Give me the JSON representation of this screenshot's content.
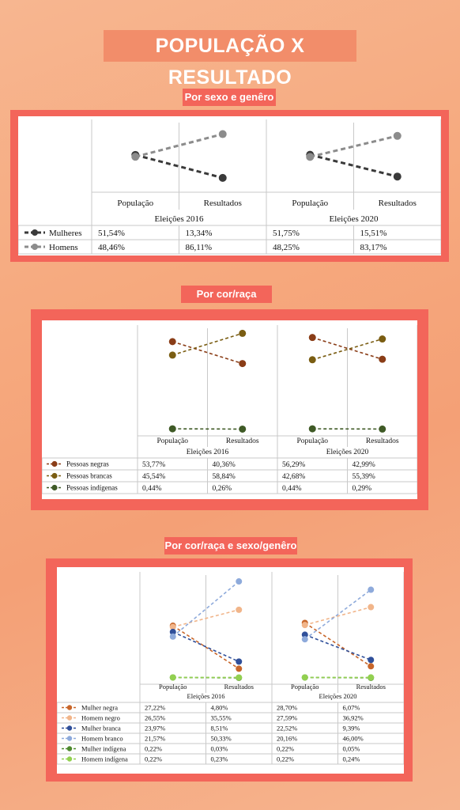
{
  "title": "POPULAÇÃO X RESULTADO",
  "sections": [
    {
      "subtitle": "Por sexo e genêro"
    },
    {
      "subtitle": "Por cor/raça"
    },
    {
      "subtitle": "Por cor/raça e sexo/genêro"
    }
  ],
  "chart_data": [
    {
      "type": "line",
      "title": "",
      "groups": [
        "Eleições 2016",
        "Eleições 2020"
      ],
      "categories": [
        "População",
        "Resultados"
      ],
      "series": [
        {
          "name": "Mulheres",
          "color": "#3a3a3a",
          "values": [
            [
              51.54,
              13.34
            ],
            [
              51.75,
              15.51
            ]
          ],
          "labels": [
            [
              "51,54%",
              "13,34%"
            ],
            [
              "51,75%",
              "15,51%"
            ]
          ]
        },
        {
          "name": "Homens",
          "color": "#8c8c8c",
          "values": [
            [
              48.46,
              86.11
            ],
            [
              48.25,
              83.17
            ]
          ],
          "labels": [
            [
              "48,46%",
              "86,11%"
            ],
            [
              "48,25%",
              "83,17%"
            ]
          ]
        }
      ]
    },
    {
      "type": "line",
      "title": "",
      "groups": [
        "Eleições 2016",
        "Eleições 2020"
      ],
      "categories": [
        "População",
        "Resultados"
      ],
      "series": [
        {
          "name": "Pessoas negras",
          "color": "#8a3d17",
          "values": [
            [
              53.77,
              40.36
            ],
            [
              56.29,
              42.99
            ]
          ],
          "labels": [
            [
              "53,77%",
              "40,36%"
            ],
            [
              "56,29%",
              "42,99%"
            ]
          ]
        },
        {
          "name": "Pessoas brancas",
          "color": "#7a5d12",
          "values": [
            [
              45.54,
              58.84
            ],
            [
              42.68,
              55.39
            ]
          ],
          "labels": [
            [
              "45,54%",
              "58,84%"
            ],
            [
              "42,68%",
              "55,39%"
            ]
          ]
        },
        {
          "name": "Pessoas indígenas",
          "color": "#3f5a26",
          "values": [
            [
              0.44,
              0.26
            ],
            [
              0.44,
              0.29
            ]
          ],
          "labels": [
            [
              "0,44%",
              "0,26%"
            ],
            [
              "0,44%",
              "0,29%"
            ]
          ]
        }
      ]
    },
    {
      "type": "line",
      "title": "",
      "groups": [
        "Eleições 2016",
        "Eleições 2020"
      ],
      "categories": [
        "População",
        "Resultados"
      ],
      "series": [
        {
          "name": "Mulher negra",
          "color": "#c8662a",
          "values": [
            [
              27.22,
              4.8
            ],
            [
              28.7,
              6.07
            ]
          ],
          "labels": [
            [
              "27,22%",
              "4,80%"
            ],
            [
              "28,70%",
              "6,07%"
            ]
          ]
        },
        {
          "name": "Homem negro",
          "color": "#f1b58a",
          "values": [
            [
              26.55,
              35.55
            ],
            [
              27.59,
              36.92
            ]
          ],
          "labels": [
            [
              "26,55%",
              "35,55%"
            ],
            [
              "27,59%",
              "36,92%"
            ]
          ]
        },
        {
          "name": "Mulher branca",
          "color": "#2f4f9a",
          "values": [
            [
              23.97,
              8.51
            ],
            [
              22.52,
              9.39
            ]
          ],
          "labels": [
            [
              "23,97%",
              "8,51%"
            ],
            [
              "22,52%",
              "9,39%"
            ]
          ]
        },
        {
          "name": "Homem branco",
          "color": "#8eaadb",
          "values": [
            [
              21.57,
              50.33
            ],
            [
              20.16,
              46.0
            ]
          ],
          "labels": [
            [
              "21,57%",
              "50,33%"
            ],
            [
              "20,16%",
              "46,00%"
            ]
          ]
        },
        {
          "name": "Mulher indígena",
          "color": "#4e8a2e",
          "values": [
            [
              0.22,
              0.03
            ],
            [
              0.22,
              0.05
            ]
          ],
          "labels": [
            [
              "0,22%",
              "0,03%"
            ],
            [
              "0,22%",
              "0,05%"
            ]
          ]
        },
        {
          "name": "Homem indígena",
          "color": "#92d050",
          "values": [
            [
              0.22,
              0.23
            ],
            [
              0.22,
              0.24
            ]
          ],
          "labels": [
            [
              "0,22%",
              "0,23%"
            ],
            [
              "0,22%",
              "0,24%"
            ]
          ]
        }
      ]
    }
  ]
}
